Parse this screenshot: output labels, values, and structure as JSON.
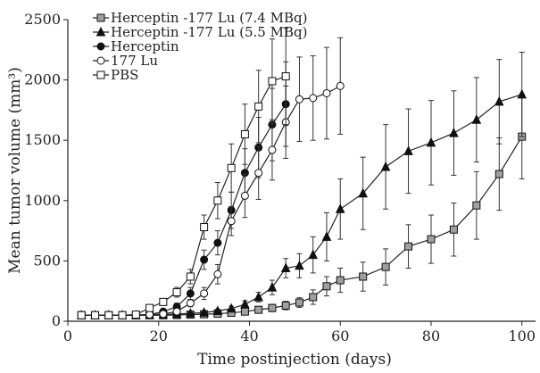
{
  "chart_data": {
    "type": "line",
    "xlabel": "Time postinjection (days)",
    "ylabel": "Mean tumor volume (mm³)",
    "xlim": [
      0,
      103
    ],
    "ylim": [
      0,
      2500
    ],
    "xticks": [
      0,
      20,
      40,
      60,
      80,
      100
    ],
    "yticks": [
      0,
      500,
      1000,
      1500,
      2000,
      2500
    ],
    "legend": "top-left",
    "grid": false,
    "series": [
      {
        "name": "Herceptin -177 Lu (7.4 MBq)",
        "marker": "square",
        "fill": "#a0a0a0",
        "x": [
          3,
          6,
          9,
          12,
          15,
          18,
          21,
          24,
          27,
          30,
          33,
          36,
          39,
          42,
          45,
          48,
          51,
          54,
          57,
          60,
          65,
          70,
          75,
          80,
          85,
          90,
          95,
          100
        ],
        "y": [
          50,
          50,
          50,
          50,
          50,
          50,
          50,
          52,
          55,
          58,
          62,
          70,
          80,
          95,
          110,
          130,
          155,
          200,
          290,
          340,
          370,
          450,
          620,
          680,
          760,
          960,
          1220,
          1530
        ],
        "err": [
          0,
          0,
          0,
          0,
          0,
          0,
          0,
          5,
          5,
          8,
          10,
          15,
          20,
          25,
          30,
          35,
          40,
          60,
          80,
          100,
          120,
          150,
          180,
          200,
          220,
          280,
          300,
          350
        ]
      },
      {
        "name": "Herceptin -177 Lu (5.5 MBq)",
        "marker": "triangle",
        "fill": "#111111",
        "x": [
          3,
          6,
          9,
          12,
          15,
          18,
          21,
          24,
          27,
          30,
          33,
          36,
          39,
          42,
          45,
          48,
          51,
          54,
          57,
          60,
          65,
          70,
          75,
          80,
          85,
          90,
          95,
          100
        ],
        "y": [
          50,
          50,
          50,
          50,
          50,
          52,
          55,
          60,
          65,
          72,
          85,
          105,
          140,
          200,
          280,
          440,
          460,
          550,
          700,
          930,
          1060,
          1280,
          1410,
          1480,
          1560,
          1670,
          1820,
          1880
        ],
        "err": [
          0,
          0,
          0,
          0,
          0,
          0,
          5,
          5,
          8,
          10,
          15,
          20,
          30,
          40,
          60,
          80,
          100,
          150,
          200,
          250,
          300,
          350,
          350,
          350,
          350,
          350,
          350,
          350
        ]
      },
      {
        "name": "Herceptin",
        "marker": "circle",
        "fill": "#111111",
        "x": [
          3,
          6,
          9,
          12,
          15,
          18,
          21,
          24,
          27,
          30,
          33,
          36,
          39,
          42,
          45,
          48
        ],
        "y": [
          50,
          50,
          50,
          50,
          52,
          55,
          80,
          120,
          230,
          510,
          650,
          920,
          1230,
          1440,
          1630,
          1800
        ],
        "err": [
          0,
          0,
          0,
          0,
          5,
          8,
          15,
          30,
          50,
          80,
          100,
          150,
          200,
          250,
          300,
          350
        ]
      },
      {
        "name": "177 Lu",
        "marker": "circle",
        "fill": "#ffffff",
        "x": [
          3,
          6,
          9,
          12,
          15,
          18,
          21,
          24,
          27,
          30,
          33,
          36,
          39,
          42,
          45,
          48,
          51,
          54,
          57,
          60
        ],
        "y": [
          50,
          50,
          50,
          50,
          52,
          55,
          60,
          80,
          150,
          230,
          390,
          830,
          1040,
          1230,
          1420,
          1650,
          1840,
          1850,
          1890,
          1950
        ],
        "err": [
          0,
          0,
          0,
          0,
          5,
          5,
          10,
          20,
          30,
          50,
          80,
          120,
          180,
          220,
          250,
          300,
          350,
          350,
          380,
          400
        ]
      },
      {
        "name": "PBS",
        "marker": "square",
        "fill": "#ffffff",
        "x": [
          3,
          6,
          9,
          12,
          15,
          18,
          21,
          24,
          27,
          30,
          33,
          36,
          39,
          42,
          45,
          48
        ],
        "y": [
          50,
          50,
          50,
          50,
          55,
          110,
          160,
          240,
          370,
          780,
          1000,
          1270,
          1550,
          1780,
          1990,
          2030
        ],
        "err": [
          0,
          0,
          0,
          0,
          5,
          15,
          25,
          40,
          60,
          100,
          150,
          200,
          250,
          300,
          350,
          400
        ]
      }
    ]
  }
}
